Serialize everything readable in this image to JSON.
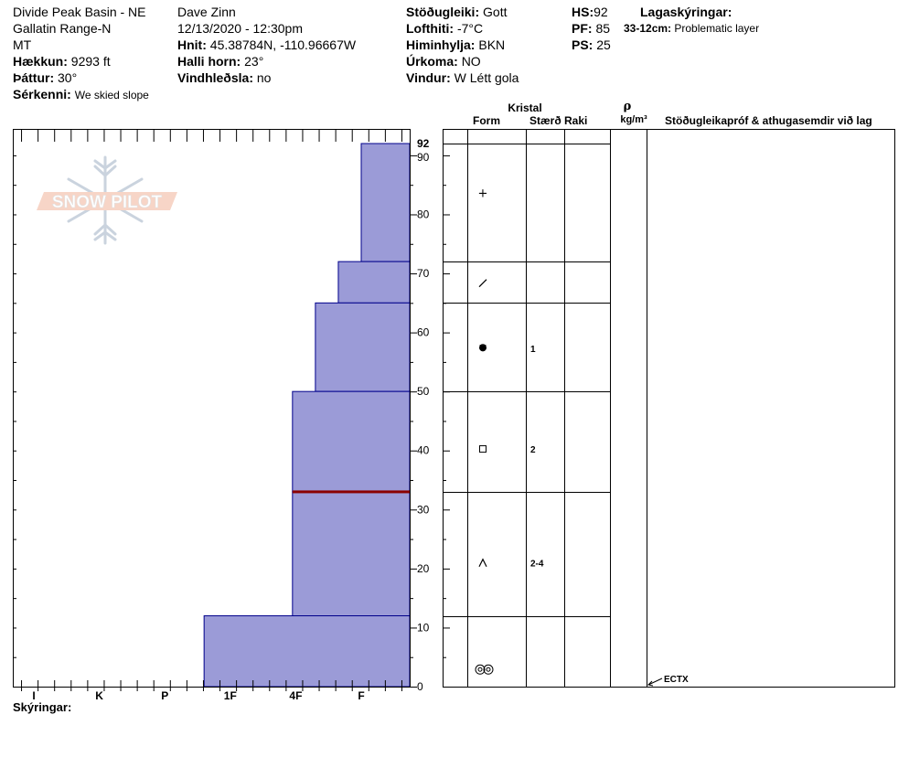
{
  "header": {
    "location": "Divide Peak Basin - NE",
    "range": "Gallatin Range-N",
    "state": "MT",
    "elevation_label": "Hækkun:",
    "elevation_value": "9293 ft",
    "aspect_label": "Þáttur:",
    "aspect_value": "30°",
    "features_label": "Sérkenni:",
    "features_value": "We skied slope",
    "observer": "Dave Zinn",
    "datetime": "12/13/2020 - 12:30pm",
    "coords_label": "Hnit:",
    "coords_value": "45.38784N, -110.96667W",
    "slope_label": "Halli horn:",
    "slope_value": "23°",
    "wind_loading_label": "Vindhleðsla:",
    "wind_loading_value": "no",
    "stability_label": "Stöðugleiki:",
    "stability_value": "Gott",
    "air_temp_label": "Lofthiti:",
    "air_temp_value": "-7°C",
    "sky_label": "Himinhylja:",
    "sky_value": "BKN",
    "precip_label": "Úrkoma:",
    "precip_value": "NO",
    "wind_label": "Vindur:",
    "wind_value": "W Létt gola",
    "hs_label": "HS:",
    "hs_value": "92",
    "pf_label": "PF:",
    "pf_value": "85",
    "ps_label": "PS:",
    "ps_value": "25",
    "layer_notes_label": "Lagaskýringar:",
    "layer_note_depth": "33-12cm:",
    "layer_note_text": "Problematic layer"
  },
  "logo_text": "SNOW PILOT",
  "columns": {
    "crystal": "Kristal",
    "form": "Form",
    "size": "Stærð",
    "moisture": "Raki",
    "rho": "ρ",
    "density_unit": "kg/m³",
    "tests": "Stöðugleikapróf & athugasemdir við lag"
  },
  "legend_label": "Skýringar:",
  "test_label": "ECTX",
  "colors": {
    "layer_fill": "#9b9bd7",
    "layer_stroke": "#00008b",
    "weak_layer_line": "#8b0000"
  },
  "chart_data": {
    "type": "bar",
    "xlabel": "",
    "ylabel": "",
    "x_ticks": [
      "I",
      "K",
      "P",
      "1F",
      "4F",
      "F"
    ],
    "y_ticks": [
      0,
      10,
      20,
      30,
      40,
      50,
      60,
      70,
      80,
      90,
      92
    ],
    "ylim": [
      0,
      92
    ],
    "layers": [
      {
        "top": 92,
        "bottom": 72,
        "hardness": "F",
        "form": "+",
        "size": ""
      },
      {
        "top": 72,
        "bottom": 65,
        "hardness": "F+",
        "form": "/",
        "size": ""
      },
      {
        "top": 65,
        "bottom": 50,
        "hardness": "4F-",
        "form": "rounded-facet",
        "size": "1"
      },
      {
        "top": 50,
        "bottom": 33,
        "hardness": "4F",
        "form": "facet",
        "size": "2"
      },
      {
        "top": 33,
        "bottom": 12,
        "hardness": "4F",
        "form": "depth-hoar",
        "size": "2-4"
      },
      {
        "top": 12,
        "bottom": 0,
        "hardness": "P",
        "form": "melt-freeze",
        "size": ""
      }
    ],
    "layer_boundaries": [
      92,
      72,
      65,
      50,
      33,
      12
    ],
    "weak_layer_depth": 33,
    "hardness_scale": {
      "F": 6,
      "F+": 5.65,
      "4F-": 5.3,
      "4F": 4.95,
      "P": 3.6
    },
    "tests": [
      {
        "depth": 0,
        "label": "ECTX"
      }
    ]
  }
}
